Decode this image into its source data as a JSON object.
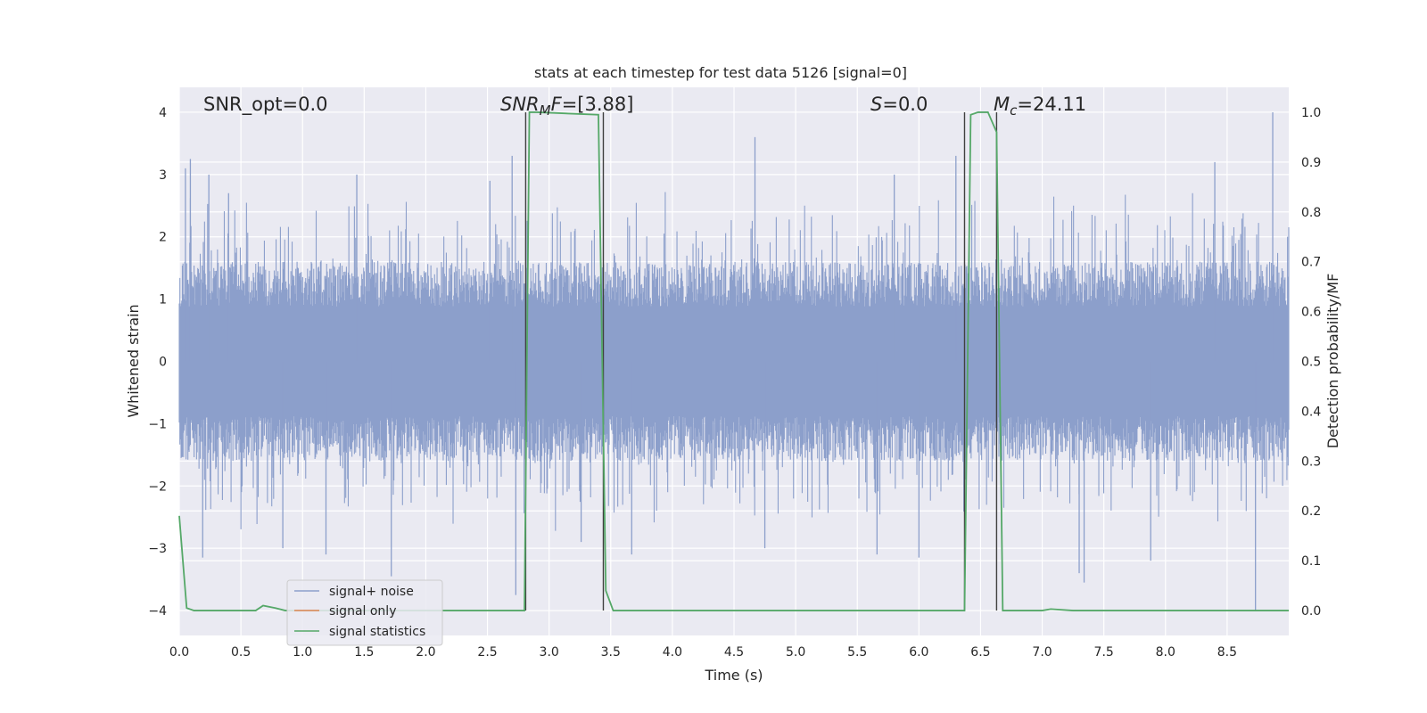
{
  "chart_data": {
    "type": "line",
    "title": "stats at each timestep for test data 5126 [signal=0]",
    "xlabel": "Time (s)",
    "ylabel_left": "Whitened strain",
    "ylabel_right": "Detection probability/MF",
    "xlim": [
      0.0,
      9.0
    ],
    "ylim_left": [
      -4.4,
      4.4
    ],
    "ylim_right": [
      -0.05,
      1.05
    ],
    "x_ticks": [
      "0.0",
      "0.5",
      "1.0",
      "1.5",
      "2.0",
      "2.5",
      "3.0",
      "3.5",
      "4.0",
      "4.5",
      "5.0",
      "5.5",
      "6.0",
      "6.5",
      "7.0",
      "7.5",
      "8.0",
      "8.5"
    ],
    "y_ticks_left": [
      "4",
      "3",
      "2",
      "1",
      "0",
      "−1",
      "−2",
      "−3",
      "−4"
    ],
    "y_ticks_right": [
      "1.0",
      "0.9",
      "0.8",
      "0.7",
      "0.6",
      "0.5",
      "0.4",
      "0.3",
      "0.2",
      "0.1",
      "0.0"
    ],
    "annotations": {
      "snr_opt": "SNR_opt=0.0",
      "snr_mf_main": "SNR",
      "snr_mf_sub": "M",
      "snr_mf_post": "F",
      "snr_mf_value": "=[3.88]",
      "s_label": "S",
      "s_value": "=0.0",
      "mc_label": "M",
      "mc_sub": "c",
      "mc_value": "=24.11"
    },
    "legend": {
      "position": "lower-left",
      "entries": [
        {
          "label": "signal+ noise",
          "color": "#8c9fcb"
        },
        {
          "label": "signal only",
          "color": "#dd8452"
        },
        {
          "label": "signal statistics",
          "color": "#55a868"
        }
      ]
    },
    "grid": true,
    "background": "#eaeaf2",
    "series": [
      {
        "name": "signal+ noise",
        "axis": "left",
        "color": "#8c9fcb",
        "description_kind": "dense noise",
        "envelope_typical": 1.6,
        "peaks": [
          {
            "x": 0.05,
            "y": 3.1
          },
          {
            "x": 0.09,
            "y": 3.25
          },
          {
            "x": 0.19,
            "y": -3.15
          },
          {
            "x": 0.24,
            "y": 3.0
          },
          {
            "x": 0.4,
            "y": 2.7
          },
          {
            "x": 0.67,
            "y": 0.75
          },
          {
            "x": 0.84,
            "y": -3.0
          },
          {
            "x": 1.19,
            "y": -3.1
          },
          {
            "x": 1.44,
            "y": 3.0
          },
          {
            "x": 1.72,
            "y": -3.45
          },
          {
            "x": 2.52,
            "y": 2.9
          },
          {
            "x": 2.7,
            "y": 3.3
          },
          {
            "x": 2.73,
            "y": -3.75
          },
          {
            "x": 3.26,
            "y": -2.9
          },
          {
            "x": 3.67,
            "y": -3.1
          },
          {
            "x": 4.67,
            "y": 3.6
          },
          {
            "x": 4.75,
            "y": -3.0
          },
          {
            "x": 5.66,
            "y": -3.1
          },
          {
            "x": 5.8,
            "y": 3.0
          },
          {
            "x": 6.0,
            "y": -3.15
          },
          {
            "x": 6.3,
            "y": 3.3
          },
          {
            "x": 7.3,
            "y": -3.4
          },
          {
            "x": 7.34,
            "y": -3.55
          },
          {
            "x": 7.88,
            "y": -3.2
          },
          {
            "x": 8.4,
            "y": 3.2
          },
          {
            "x": 8.73,
            "y": -4.0
          },
          {
            "x": 8.87,
            "y": 4.0
          }
        ]
      },
      {
        "name": "signal only",
        "axis": "left",
        "color": "#dd8452",
        "x": [],
        "y": []
      },
      {
        "name": "signal statistics",
        "axis": "right",
        "color": "#55a868",
        "x": [
          0.0,
          0.06,
          0.12,
          0.3,
          0.62,
          0.68,
          0.78,
          0.86,
          2.4,
          2.8,
          2.84,
          2.9,
          3.4,
          3.46,
          3.52,
          3.58,
          6.2,
          6.37,
          6.42,
          6.48,
          6.56,
          6.63,
          6.68,
          6.74,
          7.0,
          7.07,
          7.25,
          9.0
        ],
        "y": [
          0.19,
          0.005,
          0.0,
          0.0,
          0.0,
          0.01,
          0.005,
          0.0,
          0.0,
          0.0,
          1.0,
          1.0,
          0.995,
          0.04,
          0.0,
          0.0,
          0.0,
          0.0,
          0.995,
          1.0,
          1.0,
          0.96,
          0.0,
          0.0,
          0.0,
          0.003,
          0.0,
          0.0
        ]
      }
    ],
    "vertical_lines": [
      {
        "x": 2.81,
        "color": "#404040"
      },
      {
        "x": 3.44,
        "color": "#404040"
      },
      {
        "x": 6.37,
        "color": "#404040"
      },
      {
        "x": 6.63,
        "color": "#404040"
      }
    ]
  }
}
